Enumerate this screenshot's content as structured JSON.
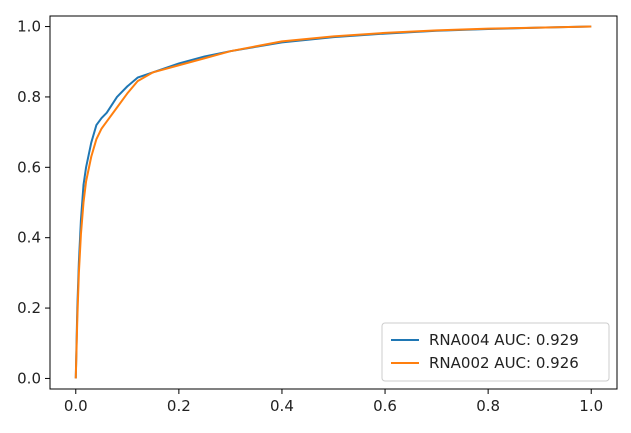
{
  "chart_data": {
    "type": "line",
    "title": "",
    "xlabel": "",
    "ylabel": "",
    "xlim": [
      -0.05,
      1.05
    ],
    "ylim": [
      -0.03,
      1.03
    ],
    "xticks": [
      0.0,
      0.2,
      0.4,
      0.6,
      0.8,
      1.0
    ],
    "yticks": [
      0.0,
      0.2,
      0.4,
      0.6,
      0.8,
      1.0
    ],
    "xtick_labels": [
      "0.0",
      "0.2",
      "0.4",
      "0.6",
      "0.8",
      "1.0"
    ],
    "ytick_labels": [
      "0.0",
      "0.2",
      "0.4",
      "0.6",
      "0.8",
      "1.0"
    ],
    "grid": false,
    "legend_position": "bottom-right",
    "series": [
      {
        "name": "RNA004 AUC: 0.929",
        "color": "#1f77b4",
        "x": [
          0.0,
          0.003,
          0.006,
          0.01,
          0.015,
          0.02,
          0.03,
          0.04,
          0.05,
          0.06,
          0.08,
          0.1,
          0.12,
          0.15,
          0.2,
          0.25,
          0.3,
          0.4,
          0.5,
          0.6,
          0.7,
          0.8,
          0.9,
          1.0
        ],
        "y": [
          0.0,
          0.2,
          0.33,
          0.45,
          0.55,
          0.6,
          0.67,
          0.72,
          0.74,
          0.755,
          0.8,
          0.83,
          0.855,
          0.87,
          0.895,
          0.915,
          0.93,
          0.955,
          0.97,
          0.98,
          0.988,
          0.993,
          0.997,
          1.0
        ]
      },
      {
        "name": "RNA002 AUC: 0.926",
        "color": "#ff7f0e",
        "x": [
          0.0,
          0.003,
          0.006,
          0.01,
          0.015,
          0.02,
          0.03,
          0.04,
          0.05,
          0.06,
          0.08,
          0.1,
          0.12,
          0.15,
          0.2,
          0.25,
          0.3,
          0.4,
          0.5,
          0.6,
          0.7,
          0.8,
          0.9,
          1.0
        ],
        "y": [
          0.0,
          0.17,
          0.3,
          0.41,
          0.5,
          0.56,
          0.63,
          0.68,
          0.71,
          0.73,
          0.77,
          0.81,
          0.845,
          0.87,
          0.89,
          0.91,
          0.93,
          0.958,
          0.972,
          0.982,
          0.989,
          0.994,
          0.997,
          1.0
        ]
      }
    ]
  }
}
